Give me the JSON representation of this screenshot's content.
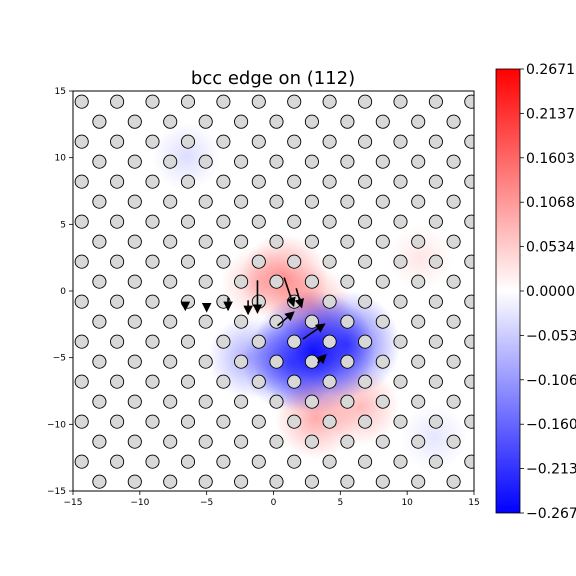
{
  "chart_data": {
    "type": "heatmap",
    "title": "bcc edge on (112)",
    "xlabel": "",
    "ylabel": "",
    "xlim": [
      -15,
      15
    ],
    "ylim": [
      -15,
      15
    ],
    "x_ticks": [
      "−15",
      "−10",
      "−5",
      "0",
      "5",
      "10",
      "15"
    ],
    "y_ticks": [
      "−15",
      "−10",
      "−5",
      "0",
      "5",
      "10",
      "15"
    ],
    "x_tick_values": [
      -15,
      -10,
      -5,
      0,
      5,
      10,
      15
    ],
    "y_tick_values": [
      -15,
      -10,
      -5,
      0,
      5,
      10,
      15
    ],
    "colormap": "bwr",
    "colorbar": {
      "range": [
        -0.2671,
        0.2671
      ],
      "tick_values": [
        0.2671,
        0.2137,
        0.1603,
        0.1068,
        0.0534,
        0.0,
        -0.0534,
        -0.1068,
        -0.1603,
        -0.2137,
        -0.2671
      ],
      "tick_labels": [
        "0.2671",
        "0.2137",
        "0.1603",
        "0.1068",
        "0.0534",
        "0.0000",
        "−0.0534",
        "−0.1068",
        "−0.1603",
        "−0.2137",
        "−0.2671"
      ]
    },
    "atoms": {
      "lattice_rows_y": [
        14.2,
        12.7,
        11.2,
        9.7,
        8.2,
        6.7,
        5.2,
        3.7,
        2.2,
        0.7,
        -0.8,
        -2.3,
        -3.8,
        -5.3,
        -6.8,
        -8.3,
        -9.8,
        -11.3,
        -12.8,
        -14.3
      ],
      "row_x_step": 2.65,
      "row_shift": 1.325,
      "marker": "open circle"
    },
    "field_blobs": [
      {
        "x": 0.8,
        "y": 1.0,
        "value": 0.12
      },
      {
        "x": 2.8,
        "y": -1.0,
        "value": 0.09
      },
      {
        "x": -1.2,
        "y": 0.6,
        "value": 0.06
      },
      {
        "x": 3.0,
        "y": -4.6,
        "value": -0.2671
      },
      {
        "x": 5.5,
        "y": -4.0,
        "value": -0.2
      },
      {
        "x": 1.3,
        "y": -5.4,
        "value": -0.16
      },
      {
        "x": -1.8,
        "y": -5.0,
        "value": -0.1
      },
      {
        "x": 3.2,
        "y": -9.5,
        "value": 0.1
      },
      {
        "x": 6.5,
        "y": -8.7,
        "value": 0.08
      },
      {
        "x": -6.5,
        "y": 10.1,
        "value": -0.04
      },
      {
        "x": 11.0,
        "y": 2.5,
        "value": 0.03
      },
      {
        "x": 12.0,
        "y": -11.0,
        "value": -0.03
      }
    ],
    "arrows": [
      {
        "x": -1.2,
        "y": 0.8,
        "dx": 0.0,
        "dy": -2.4
      },
      {
        "x": 0.8,
        "y": 1.0,
        "dx": 0.7,
        "dy": -2.1
      },
      {
        "x": 1.7,
        "y": 0.2,
        "dx": 0.4,
        "dy": -1.4
      },
      {
        "x": 0.3,
        "y": -2.6,
        "dx": 1.2,
        "dy": 1.0
      },
      {
        "x": 2.2,
        "y": -3.6,
        "dx": 1.6,
        "dy": 1.1
      },
      {
        "x": 3.3,
        "y": -5.4,
        "dx": 0.6,
        "dy": 0.6
      },
      {
        "x": -3.4,
        "y": -0.5,
        "dx": 0.0,
        "dy": -0.9
      },
      {
        "x": -1.9,
        "y": -0.7,
        "dx": 0.0,
        "dy": -1.0
      },
      {
        "x": -5.0,
        "y": -0.9,
        "dx": 0.0,
        "dy": -0.6
      },
      {
        "x": -6.6,
        "y": -0.9,
        "dx": 0.0,
        "dy": -0.5
      }
    ]
  }
}
